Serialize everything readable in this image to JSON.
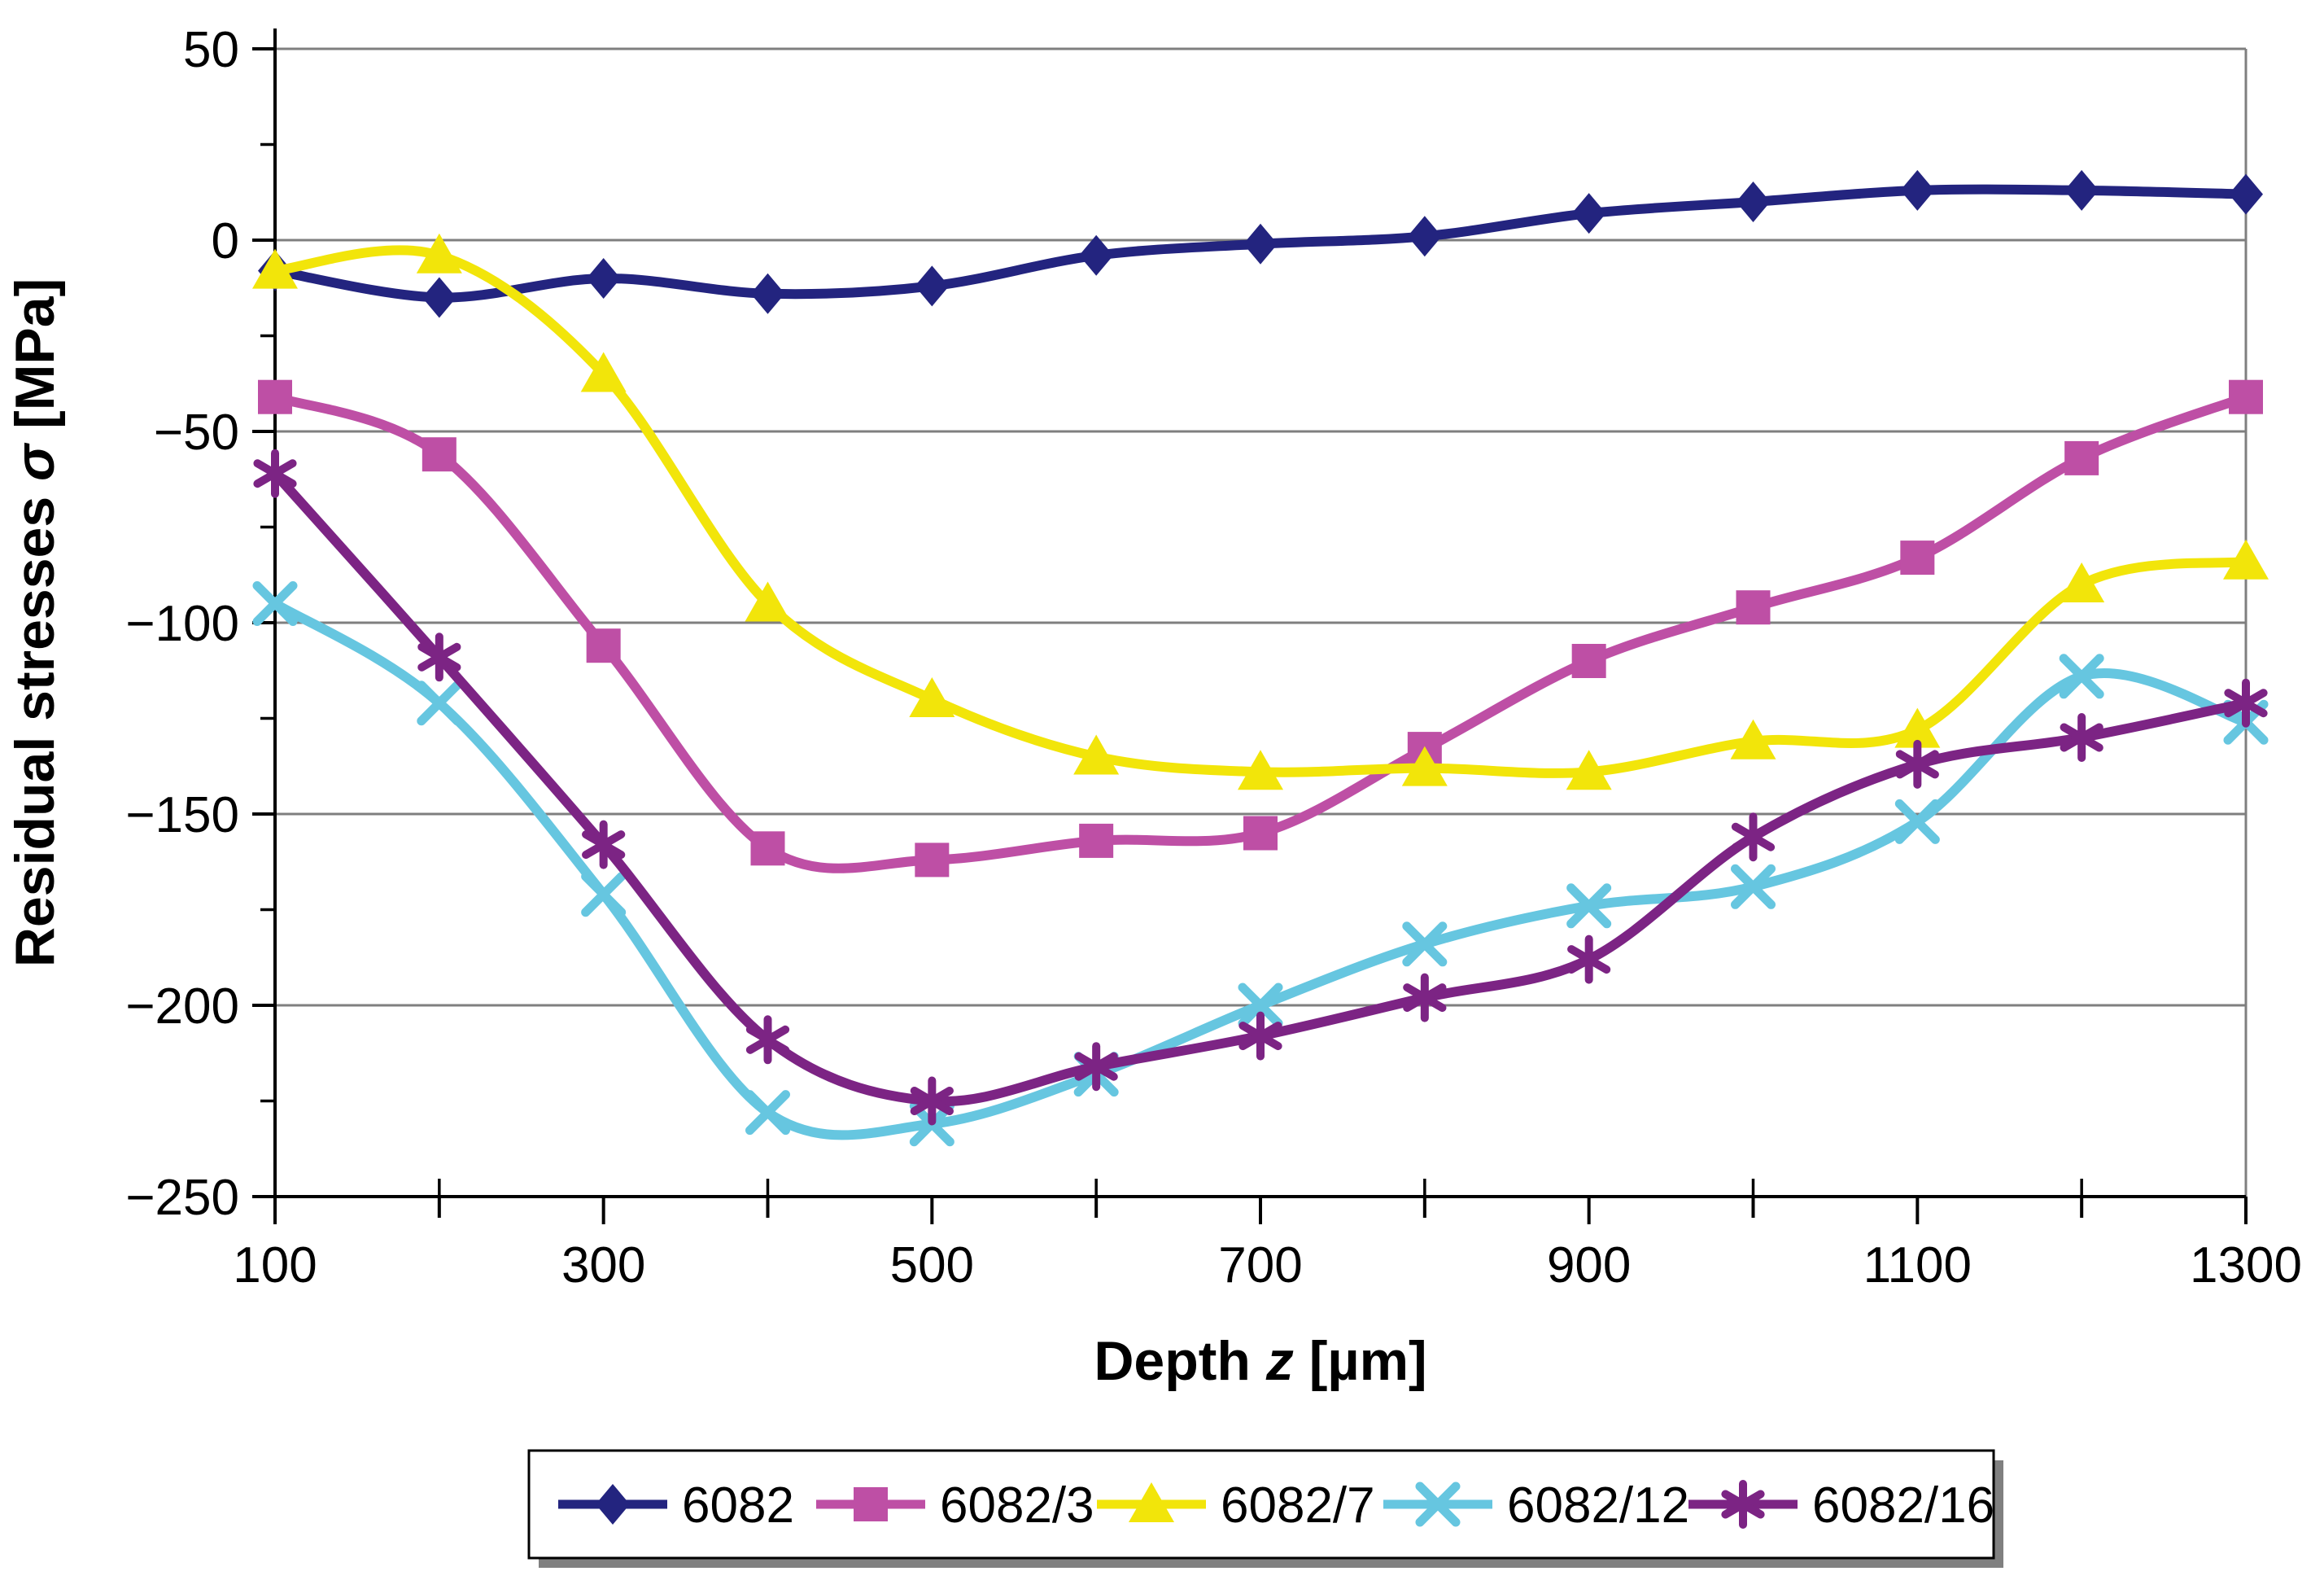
{
  "chart_data": {
    "type": "line",
    "title": "",
    "x": [
      100,
      200,
      300,
      400,
      500,
      600,
      700,
      800,
      900,
      1000,
      1100,
      1200,
      1300
    ],
    "series": [
      {
        "name": "6082",
        "color": "#23247F",
        "marker": "diamond",
        "values": [
          -8,
          -15,
          -10,
          -14,
          -12,
          -4,
          -1,
          1,
          7,
          10,
          13,
          13,
          12
        ]
      },
      {
        "name": "6082/3",
        "color": "#BE4FA5",
        "marker": "square",
        "values": [
          -41,
          -56,
          -106,
          -159,
          -162,
          -157,
          -155,
          -133,
          -110,
          -96,
          -83,
          -57,
          -41
        ]
      },
      {
        "name": "6082/7",
        "color": "#F2E50A",
        "marker": "triangle",
        "values": [
          -8,
          -4,
          -35,
          -95,
          -120,
          -135,
          -139,
          -138,
          -139,
          -131,
          -128,
          -90,
          -84
        ]
      },
      {
        "name": "6082/12",
        "color": "#66C6E0",
        "marker": "x",
        "values": [
          -95,
          -121,
          -171,
          -228,
          -231,
          -218,
          -200,
          -184,
          -174,
          -169,
          -152,
          -114,
          -126
        ]
      },
      {
        "name": "6082/16",
        "color": "#7C2484",
        "marker": "asterisk",
        "values": [
          -61,
          -109,
          -158,
          -209,
          -225,
          -216,
          -208,
          -198,
          -188,
          -156,
          -137,
          -130,
          -121
        ]
      }
    ],
    "xlabel": {
      "pre": "Depth ",
      "italic": "z",
      "post": " [µm]"
    },
    "ylabel": {
      "pre": "Residual stresses ",
      "italic": "σ",
      "post": " [MPa]"
    },
    "xlim": [
      100,
      1300
    ],
    "ylim": [
      -250,
      50
    ],
    "x_tick_labels": [
      100,
      300,
      500,
      700,
      900,
      1100,
      1300
    ],
    "x_minor_step": 100,
    "y_ticks": [
      50,
      0,
      -50,
      -100,
      -150,
      -200,
      -250
    ],
    "y_minor_step": 25,
    "grid": "horizontal",
    "legend_position": "bottom"
  },
  "colors": {
    "background": "#FFFFFF",
    "gridline": "#7F7F7F",
    "axis": "#000000",
    "legend_border": "#000000",
    "legend_shadow": "#808080",
    "text": "#000000"
  }
}
